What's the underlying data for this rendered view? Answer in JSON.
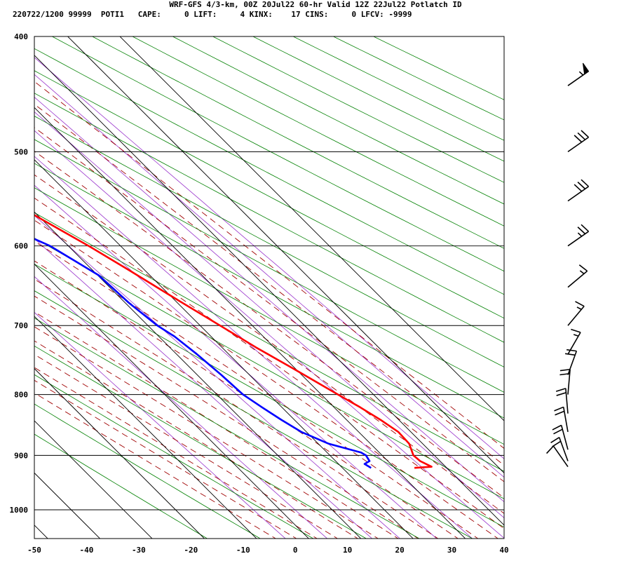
{
  "header": {
    "title": "WRF-GFS 4/3-km, 00Z 20Jul22 60-hr Valid 12Z 22Jul22 Potlatch ID",
    "subtitle": "220722/1200 99999  POTI1   CAPE:     0 LIFT:     4 KINX:    17 CINS:     0 LFCV: -9999"
  },
  "chart_data": {
    "type": "line",
    "subtype": "skew-t log-p sounding",
    "x_axis": {
      "min": -50,
      "max": 40,
      "ticks": [
        -50,
        -40,
        -30,
        -20,
        -10,
        0,
        10,
        20,
        30,
        40
      ]
    },
    "y_axis": {
      "scale": "log",
      "top": 400,
      "bottom": 1050,
      "ticks": [
        400,
        500,
        600,
        700,
        800,
        900,
        1000
      ]
    },
    "grid": true,
    "colors": {
      "temperature": "#ff0000",
      "dewpoint": "#0000ff",
      "dry_adiabat": "#008000",
      "moist_adiabat": "#a00000",
      "mixing_ratio": "#9933cc",
      "grid": "#000000"
    },
    "series": [
      {
        "key": "temperature",
        "points": [
          [
            922,
            13.8
          ],
          [
            920,
            17.3
          ],
          [
            910,
            16.2
          ],
          [
            900,
            16.0
          ],
          [
            880,
            17.4
          ],
          [
            860,
            17.6
          ],
          [
            840,
            16.5
          ],
          [
            820,
            15.0
          ],
          [
            800,
            13.2
          ],
          [
            760,
            9.5
          ],
          [
            730,
            6.5
          ],
          [
            700,
            3.8
          ],
          [
            660,
            0.0
          ],
          [
            630,
            -2.9
          ],
          [
            600,
            -6.1
          ],
          [
            570,
            -10.0
          ],
          [
            540,
            -13.8
          ],
          [
            500,
            -18.4
          ],
          [
            470,
            -21.5
          ],
          [
            440,
            -25.3
          ]
        ]
      },
      {
        "key": "dewpoint",
        "points": [
          [
            922,
            5.5
          ],
          [
            915,
            5.0
          ],
          [
            910,
            6.5
          ],
          [
            900,
            6.9
          ],
          [
            895,
            6.5
          ],
          [
            880,
            2.0
          ],
          [
            860,
            -1.0
          ],
          [
            840,
            -2.5
          ],
          [
            820,
            -3.8
          ],
          [
            800,
            -5.0
          ],
          [
            770,
            -5.4
          ],
          [
            740,
            -6.1
          ],
          [
            715,
            -7.0
          ],
          [
            700,
            -8.2
          ],
          [
            670,
            -9.3
          ],
          [
            635,
            -9.8
          ],
          [
            600,
            -13.5
          ],
          [
            560,
            -22.0
          ],
          [
            530,
            -30.0
          ],
          [
            500,
            -35.0
          ],
          [
            490,
            -37.0
          ],
          [
            460,
            -41.5
          ],
          [
            440,
            -45.5
          ]
        ]
      }
    ],
    "wind_barbs": [
      {
        "pressure": 440,
        "direction": 235,
        "speed": 55
      },
      {
        "pressure": 500,
        "direction": 235,
        "speed": 30
      },
      {
        "pressure": 550,
        "direction": 235,
        "speed": 30
      },
      {
        "pressure": 600,
        "direction": 235,
        "speed": 25
      },
      {
        "pressure": 650,
        "direction": 230,
        "speed": 15
      },
      {
        "pressure": 700,
        "direction": 220,
        "speed": 15
      },
      {
        "pressure": 740,
        "direction": 210,
        "speed": 15
      },
      {
        "pressure": 770,
        "direction": 200,
        "speed": 20
      },
      {
        "pressure": 800,
        "direction": 185,
        "speed": 20
      },
      {
        "pressure": 830,
        "direction": 175,
        "speed": 20
      },
      {
        "pressure": 860,
        "direction": 170,
        "speed": 20
      },
      {
        "pressure": 890,
        "direction": 165,
        "speed": 20
      },
      {
        "pressure": 910,
        "direction": 160,
        "speed": 20
      },
      {
        "pressure": 920,
        "direction": 145,
        "speed": 10
      }
    ]
  }
}
